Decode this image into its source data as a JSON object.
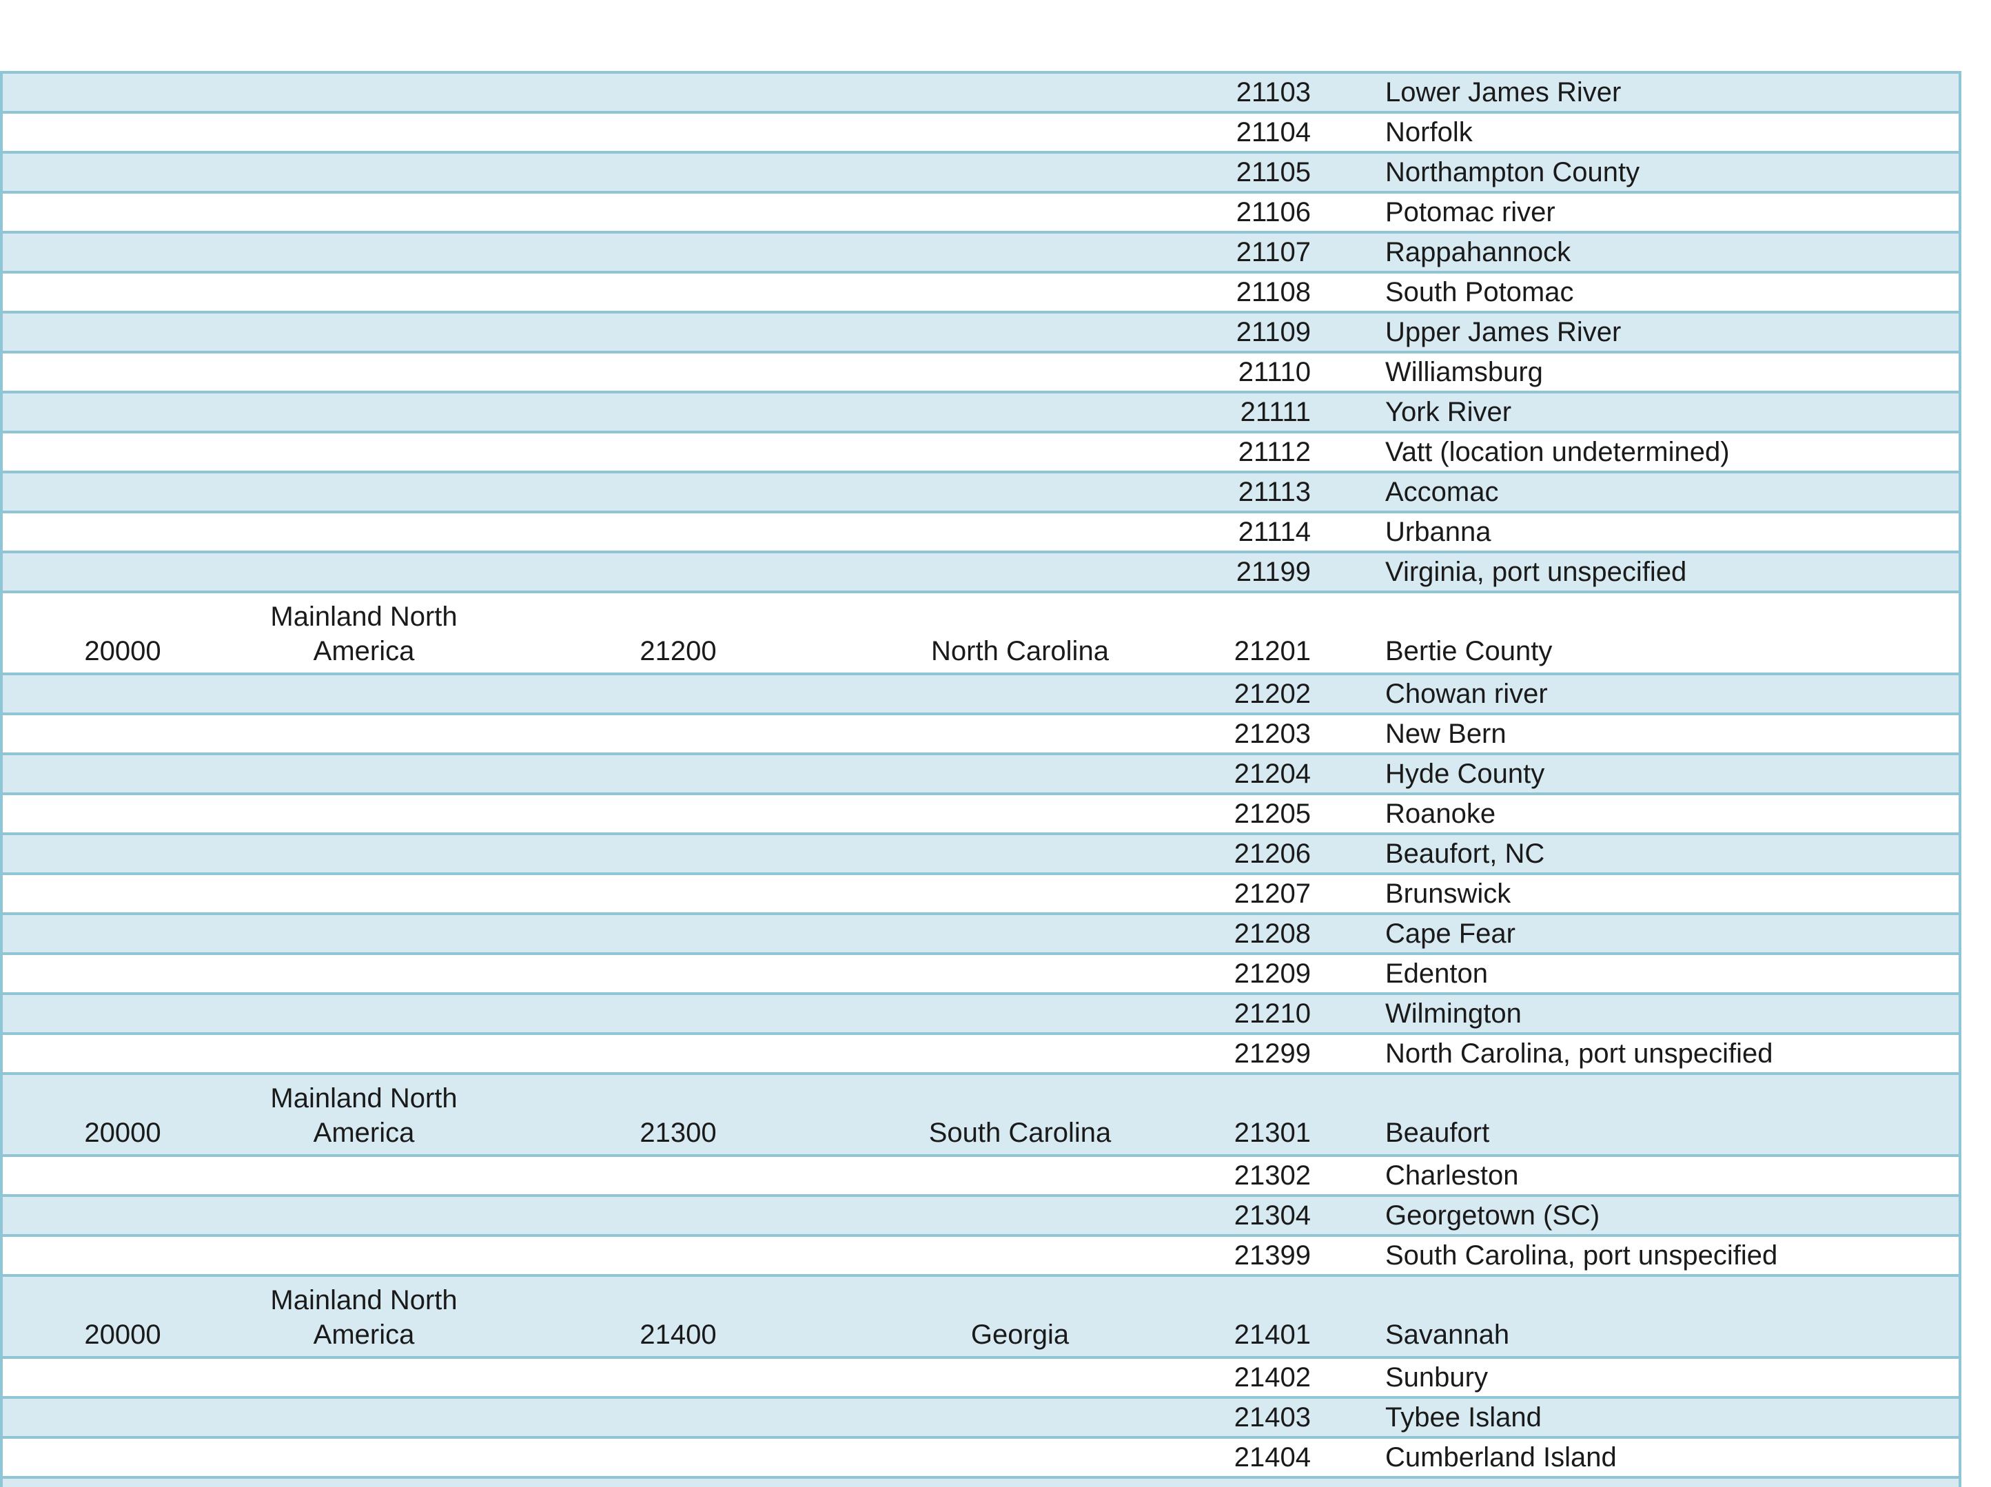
{
  "page": {
    "background": "#ffffff"
  },
  "table": {
    "colors": {
      "band_blue": "#d7e9f1",
      "band_white": "#ffffff",
      "border": "#8fc5d5",
      "text": "#1a1a1a"
    },
    "rows": [
      {
        "band": "blue",
        "section": false,
        "partial": false,
        "group_code": "",
        "group_name": "",
        "region_code": "",
        "region_name": "",
        "port_code": "21103",
        "port_name": "Lower James River"
      },
      {
        "band": "white",
        "section": false,
        "partial": false,
        "group_code": "",
        "group_name": "",
        "region_code": "",
        "region_name": "",
        "port_code": "21104",
        "port_name": "Norfolk"
      },
      {
        "band": "blue",
        "section": false,
        "partial": false,
        "group_code": "",
        "group_name": "",
        "region_code": "",
        "region_name": "",
        "port_code": "21105",
        "port_name": "Northampton County"
      },
      {
        "band": "white",
        "section": false,
        "partial": false,
        "group_code": "",
        "group_name": "",
        "region_code": "",
        "region_name": "",
        "port_code": "21106",
        "port_name": "Potomac river"
      },
      {
        "band": "blue",
        "section": false,
        "partial": false,
        "group_code": "",
        "group_name": "",
        "region_code": "",
        "region_name": "",
        "port_code": "21107",
        "port_name": "Rappahannock"
      },
      {
        "band": "white",
        "section": false,
        "partial": false,
        "group_code": "",
        "group_name": "",
        "region_code": "",
        "region_name": "",
        "port_code": "21108",
        "port_name": "South Potomac"
      },
      {
        "band": "blue",
        "section": false,
        "partial": false,
        "group_code": "",
        "group_name": "",
        "region_code": "",
        "region_name": "",
        "port_code": "21109",
        "port_name": "Upper James River"
      },
      {
        "band": "white",
        "section": false,
        "partial": false,
        "group_code": "",
        "group_name": "",
        "region_code": "",
        "region_name": "",
        "port_code": "21110",
        "port_name": "Williamsburg"
      },
      {
        "band": "blue",
        "section": false,
        "partial": false,
        "group_code": "",
        "group_name": "",
        "region_code": "",
        "region_name": "",
        "port_code": "21111",
        "port_name": "York River"
      },
      {
        "band": "white",
        "section": false,
        "partial": false,
        "group_code": "",
        "group_name": "",
        "region_code": "",
        "region_name": "",
        "port_code": "21112",
        "port_name": "Vatt (location undetermined)"
      },
      {
        "band": "blue",
        "section": false,
        "partial": false,
        "group_code": "",
        "group_name": "",
        "region_code": "",
        "region_name": "",
        "port_code": "21113",
        "port_name": "Accomac"
      },
      {
        "band": "white",
        "section": false,
        "partial": false,
        "group_code": "",
        "group_name": "",
        "region_code": "",
        "region_name": "",
        "port_code": "21114",
        "port_name": "Urbanna"
      },
      {
        "band": "blue",
        "section": false,
        "partial": false,
        "group_code": "",
        "group_name": "",
        "region_code": "",
        "region_name": "",
        "port_code": "21199",
        "port_name": "Virginia, port unspecified"
      },
      {
        "band": "white",
        "section": true,
        "partial": false,
        "group_code": "20000",
        "group_name": "Mainland North America",
        "region_code": "21200",
        "region_name": "North Carolina",
        "port_code": "21201",
        "port_name": "Bertie County"
      },
      {
        "band": "blue",
        "section": false,
        "partial": false,
        "group_code": "",
        "group_name": "",
        "region_code": "",
        "region_name": "",
        "port_code": "21202",
        "port_name": "Chowan river"
      },
      {
        "band": "white",
        "section": false,
        "partial": false,
        "group_code": "",
        "group_name": "",
        "region_code": "",
        "region_name": "",
        "port_code": "21203",
        "port_name": "New Bern"
      },
      {
        "band": "blue",
        "section": false,
        "partial": false,
        "group_code": "",
        "group_name": "",
        "region_code": "",
        "region_name": "",
        "port_code": "21204",
        "port_name": "Hyde County"
      },
      {
        "band": "white",
        "section": false,
        "partial": false,
        "group_code": "",
        "group_name": "",
        "region_code": "",
        "region_name": "",
        "port_code": "21205",
        "port_name": "Roanoke"
      },
      {
        "band": "blue",
        "section": false,
        "partial": false,
        "group_code": "",
        "group_name": "",
        "region_code": "",
        "region_name": "",
        "port_code": "21206",
        "port_name": "Beaufort, NC"
      },
      {
        "band": "white",
        "section": false,
        "partial": false,
        "group_code": "",
        "group_name": "",
        "region_code": "",
        "region_name": "",
        "port_code": "21207",
        "port_name": "Brunswick"
      },
      {
        "band": "blue",
        "section": false,
        "partial": false,
        "group_code": "",
        "group_name": "",
        "region_code": "",
        "region_name": "",
        "port_code": "21208",
        "port_name": "Cape Fear"
      },
      {
        "band": "white",
        "section": false,
        "partial": false,
        "group_code": "",
        "group_name": "",
        "region_code": "",
        "region_name": "",
        "port_code": "21209",
        "port_name": "Edenton"
      },
      {
        "band": "blue",
        "section": false,
        "partial": false,
        "group_code": "",
        "group_name": "",
        "region_code": "",
        "region_name": "",
        "port_code": "21210",
        "port_name": "Wilmington"
      },
      {
        "band": "white",
        "section": false,
        "partial": false,
        "group_code": "",
        "group_name": "",
        "region_code": "",
        "region_name": "",
        "port_code": "21299",
        "port_name": "North Carolina, port unspecified"
      },
      {
        "band": "blue",
        "section": true,
        "partial": false,
        "group_code": "20000",
        "group_name": "Mainland North America",
        "region_code": "21300",
        "region_name": "South Carolina",
        "port_code": "21301",
        "port_name": "Beaufort"
      },
      {
        "band": "white",
        "section": false,
        "partial": false,
        "group_code": "",
        "group_name": "",
        "region_code": "",
        "region_name": "",
        "port_code": "21302",
        "port_name": "Charleston"
      },
      {
        "band": "blue",
        "section": false,
        "partial": false,
        "group_code": "",
        "group_name": "",
        "region_code": "",
        "region_name": "",
        "port_code": "21304",
        "port_name": "Georgetown (SC)"
      },
      {
        "band": "white",
        "section": false,
        "partial": false,
        "group_code": "",
        "group_name": "",
        "region_code": "",
        "region_name": "",
        "port_code": "21399",
        "port_name": "South Carolina, port unspecified"
      },
      {
        "band": "blue",
        "section": true,
        "partial": false,
        "group_code": "20000",
        "group_name": "Mainland North America",
        "region_code": "21400",
        "region_name": "Georgia",
        "port_code": "21401",
        "port_name": "Savannah"
      },
      {
        "band": "white",
        "section": false,
        "partial": false,
        "group_code": "",
        "group_name": "",
        "region_code": "",
        "region_name": "",
        "port_code": "21402",
        "port_name": "Sunbury"
      },
      {
        "band": "blue",
        "section": false,
        "partial": false,
        "group_code": "",
        "group_name": "",
        "region_code": "",
        "region_name": "",
        "port_code": "21403",
        "port_name": "Tybee Island"
      },
      {
        "band": "white",
        "section": false,
        "partial": false,
        "group_code": "",
        "group_name": "",
        "region_code": "",
        "region_name": "",
        "port_code": "21404",
        "port_name": "Cumberland Island"
      },
      {
        "band": "blue",
        "section": false,
        "partial": true,
        "group_code": "",
        "group_name": "",
        "region_code": "",
        "region_name": "",
        "port_code": "",
        "port_name": ""
      }
    ]
  }
}
